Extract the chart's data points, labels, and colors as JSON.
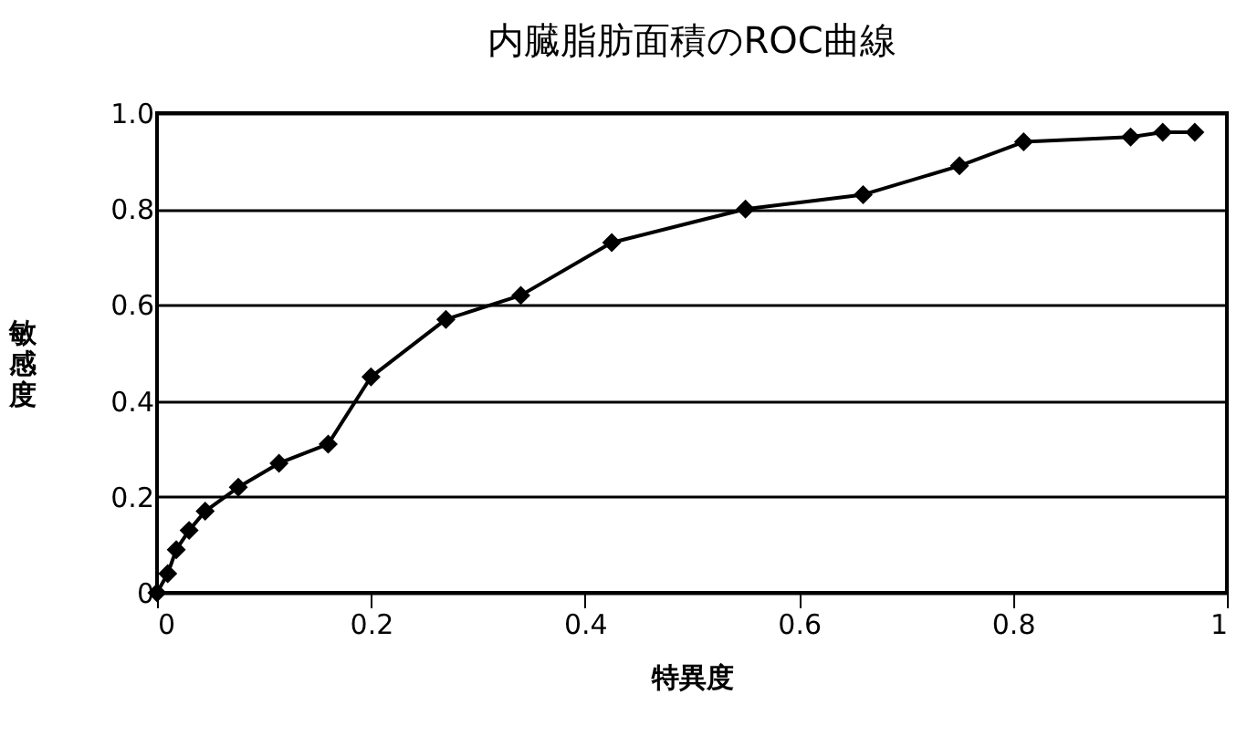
{
  "chart_data": {
    "type": "line",
    "title": "内臓脂肪面積のROC曲線",
    "xlabel": "特異度",
    "ylabel": "敏感度",
    "x": [
      0,
      0.01,
      0.018,
      0.03,
      0.045,
      0.076,
      0.114,
      0.16,
      0.2,
      0.27,
      0.34,
      0.425,
      0.55,
      0.66,
      0.75,
      0.81,
      0.91,
      0.94,
      0.97
    ],
    "series": [
      {
        "color": "#000000",
        "values": [
          0,
          0.04,
          0.09,
          0.13,
          0.17,
          0.22,
          0.27,
          0.31,
          0.45,
          0.57,
          0.62,
          0.73,
          0.8,
          0.83,
          0.89,
          0.94,
          0.95,
          0.96,
          0.96
        ]
      }
    ],
    "xlim": [
      0,
      1
    ],
    "ylim": [
      0,
      1
    ],
    "xticks": [
      0,
      0.2,
      0.4,
      0.6,
      0.8,
      1
    ],
    "yticks": [
      0,
      0.2,
      0.4,
      0.6,
      0.8,
      {
        "value": 1,
        "label": "1.0"
      }
    ],
    "grid": "y",
    "marker": "diamond",
    "line_style": "solid"
  }
}
